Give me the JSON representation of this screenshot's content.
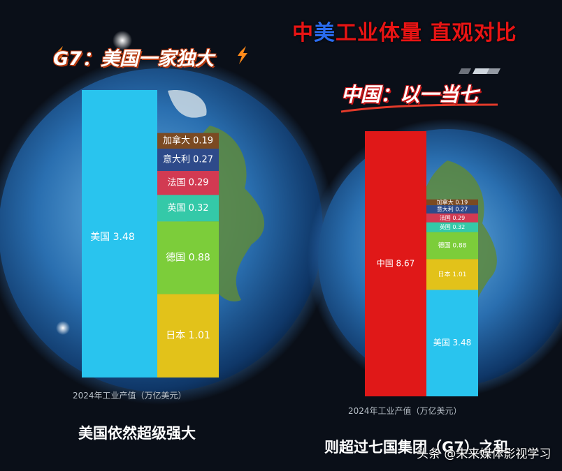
{
  "header": {
    "main_title_part1": "中",
    "main_title_part2": "美",
    "main_title_part3": "工业体量 直观对比",
    "g7_title": "G7：美国一家独大",
    "china_title": "中国：以一当七"
  },
  "captions": {
    "left_axis": "2024年工业产值（万亿美元）",
    "right_axis": "2024年工业产值（万亿美元）",
    "left_bottom": "美国依然超级强大",
    "right_bottom": "则超过七国集团（G7）之和",
    "watermark": "头条 @未来媒体影视学习"
  },
  "colors": {
    "usa": "#29c4ee",
    "china": "#e01818",
    "canada": "#7b4a22",
    "italy": "#2e4a8a",
    "france": "#d23a52",
    "uk": "#34c9a8",
    "germany": "#7ccd3a",
    "japan": "#e2c21a"
  },
  "chart_data": [
    {
      "type": "bar",
      "stacked": true,
      "title": "G7：美国一家独大",
      "xlabel": "2024年工业产值（万亿美元）",
      "unit": "万亿美元",
      "series": [
        {
          "name": "美国",
          "value": 3.48,
          "label": "美国 3.48",
          "color": "#29c4ee",
          "group": "main"
        },
        {
          "name": "加拿大",
          "value": 0.19,
          "label": "加拿大 0.19",
          "color": "#7b4a22",
          "group": "stack"
        },
        {
          "name": "意大利",
          "value": 0.27,
          "label": "意大利 0.27",
          "color": "#2e4a8a",
          "group": "stack"
        },
        {
          "name": "法国",
          "value": 0.29,
          "label": "法国 0.29",
          "color": "#d23a52",
          "group": "stack"
        },
        {
          "name": "英国",
          "value": 0.32,
          "label": "英国 0.32",
          "color": "#34c9a8",
          "group": "stack"
        },
        {
          "name": "德国",
          "value": 0.88,
          "label": "德国 0.88",
          "color": "#7ccd3a",
          "group": "stack"
        },
        {
          "name": "日本",
          "value": 1.01,
          "label": "日本 1.01",
          "color": "#e2c21a",
          "group": "stack"
        }
      ]
    },
    {
      "type": "bar",
      "stacked": true,
      "title": "中国：以一当七",
      "xlabel": "2024年工业产值（万亿美元）",
      "unit": "万亿美元",
      "series": [
        {
          "name": "中国",
          "value": 8.67,
          "label": "中国 8.67",
          "color": "#e01818",
          "group": "main"
        },
        {
          "name": "加拿大",
          "value": 0.19,
          "label": "加拿大 0.19",
          "color": "#7b4a22",
          "group": "stack"
        },
        {
          "name": "意大利",
          "value": 0.27,
          "label": "意大利 0.27",
          "color": "#2e4a8a",
          "group": "stack"
        },
        {
          "name": "法国",
          "value": 0.29,
          "label": "法国 0.29",
          "color": "#d23a52",
          "group": "stack"
        },
        {
          "name": "英国",
          "value": 0.32,
          "label": "英国 0.32",
          "color": "#34c9a8",
          "group": "stack"
        },
        {
          "name": "德国",
          "value": 0.88,
          "label": "德国 0.88",
          "color": "#7ccd3a",
          "group": "stack"
        },
        {
          "name": "日本",
          "value": 1.01,
          "label": "日本 1.01",
          "color": "#e2c21a",
          "group": "stack"
        },
        {
          "name": "美国",
          "value": 3.48,
          "label": "美国 3.48",
          "color": "#29c4ee",
          "group": "stack"
        }
      ]
    }
  ]
}
